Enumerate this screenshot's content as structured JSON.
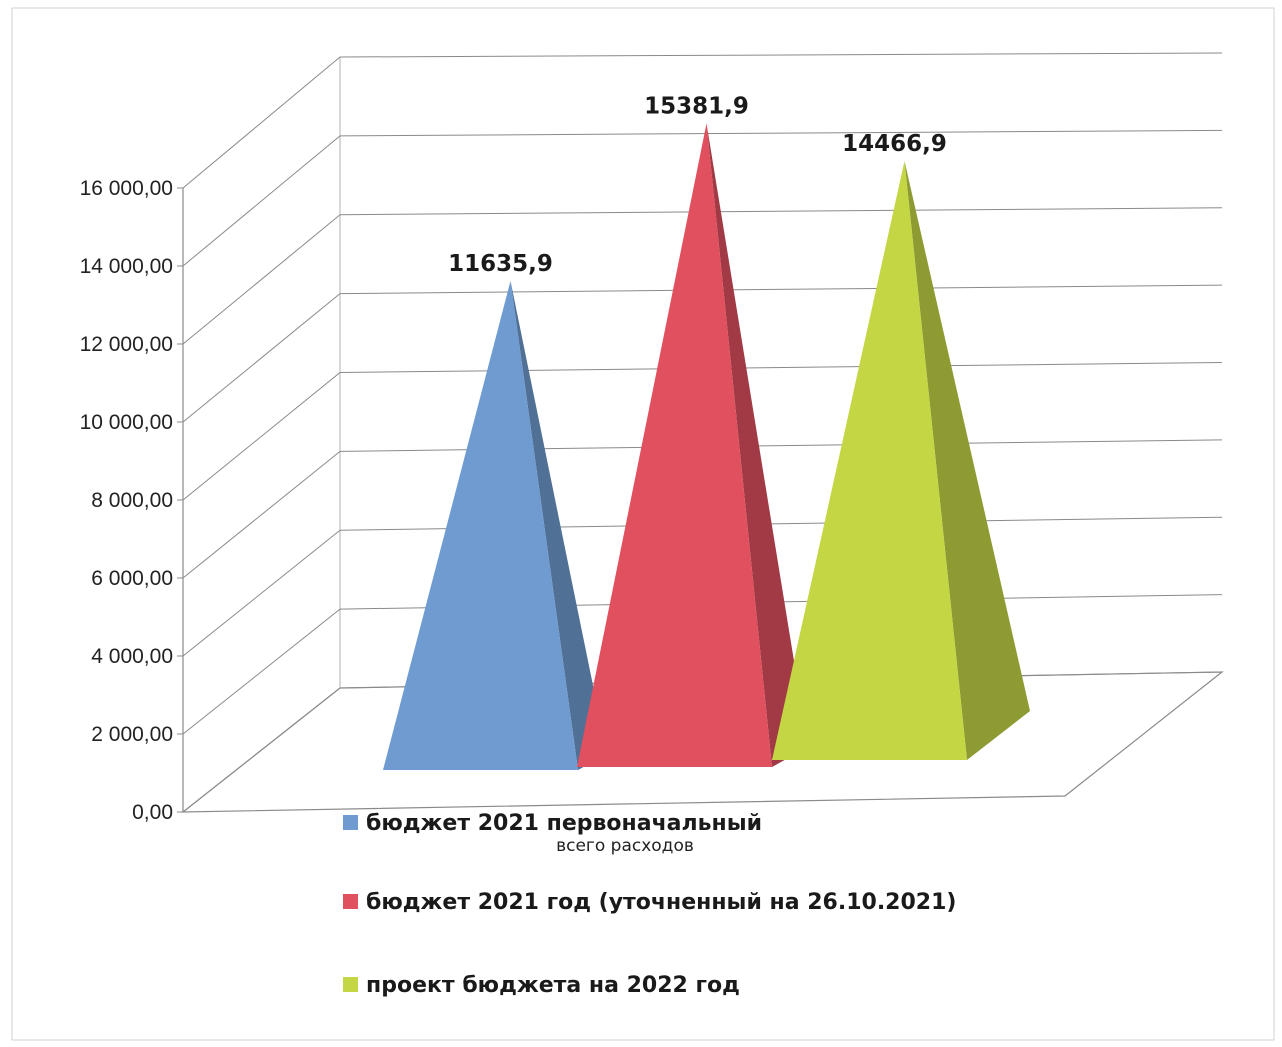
{
  "chart_data": {
    "type": "bar",
    "shape": "pyramid-3d",
    "categories": [
      "всего расходов"
    ],
    "series": [
      {
        "name": "бюджет 2021 первоначальный",
        "values": [
          11635.9
        ],
        "label": "11635,9",
        "color": "#6f9bd1"
      },
      {
        "name": "бюджет 2021 год (уточненный на 26.10.2021)",
        "values": [
          15381.9
        ],
        "label": "15381,9",
        "color": "#e0505e"
      },
      {
        "name": "проект бюджета на 2022 год",
        "values": [
          14466.9
        ],
        "label": "14466,9",
        "color": "#c5d645"
      }
    ],
    "y_ticks": [
      {
        "value": 0,
        "label": "0,00"
      },
      {
        "value": 2000,
        "label": "2 000,00"
      },
      {
        "value": 4000,
        "label": "4 000,00"
      },
      {
        "value": 6000,
        "label": "6 000,00"
      },
      {
        "value": 8000,
        "label": "8 000,00"
      },
      {
        "value": 10000,
        "label": "10 000,00"
      },
      {
        "value": 12000,
        "label": "12 000,00"
      },
      {
        "value": 14000,
        "label": "14 000,00"
      },
      {
        "value": 16000,
        "label": "16 000,00"
      }
    ],
    "ylim": [
      0,
      16000
    ],
    "grid": true,
    "legend_position": "bottom"
  }
}
